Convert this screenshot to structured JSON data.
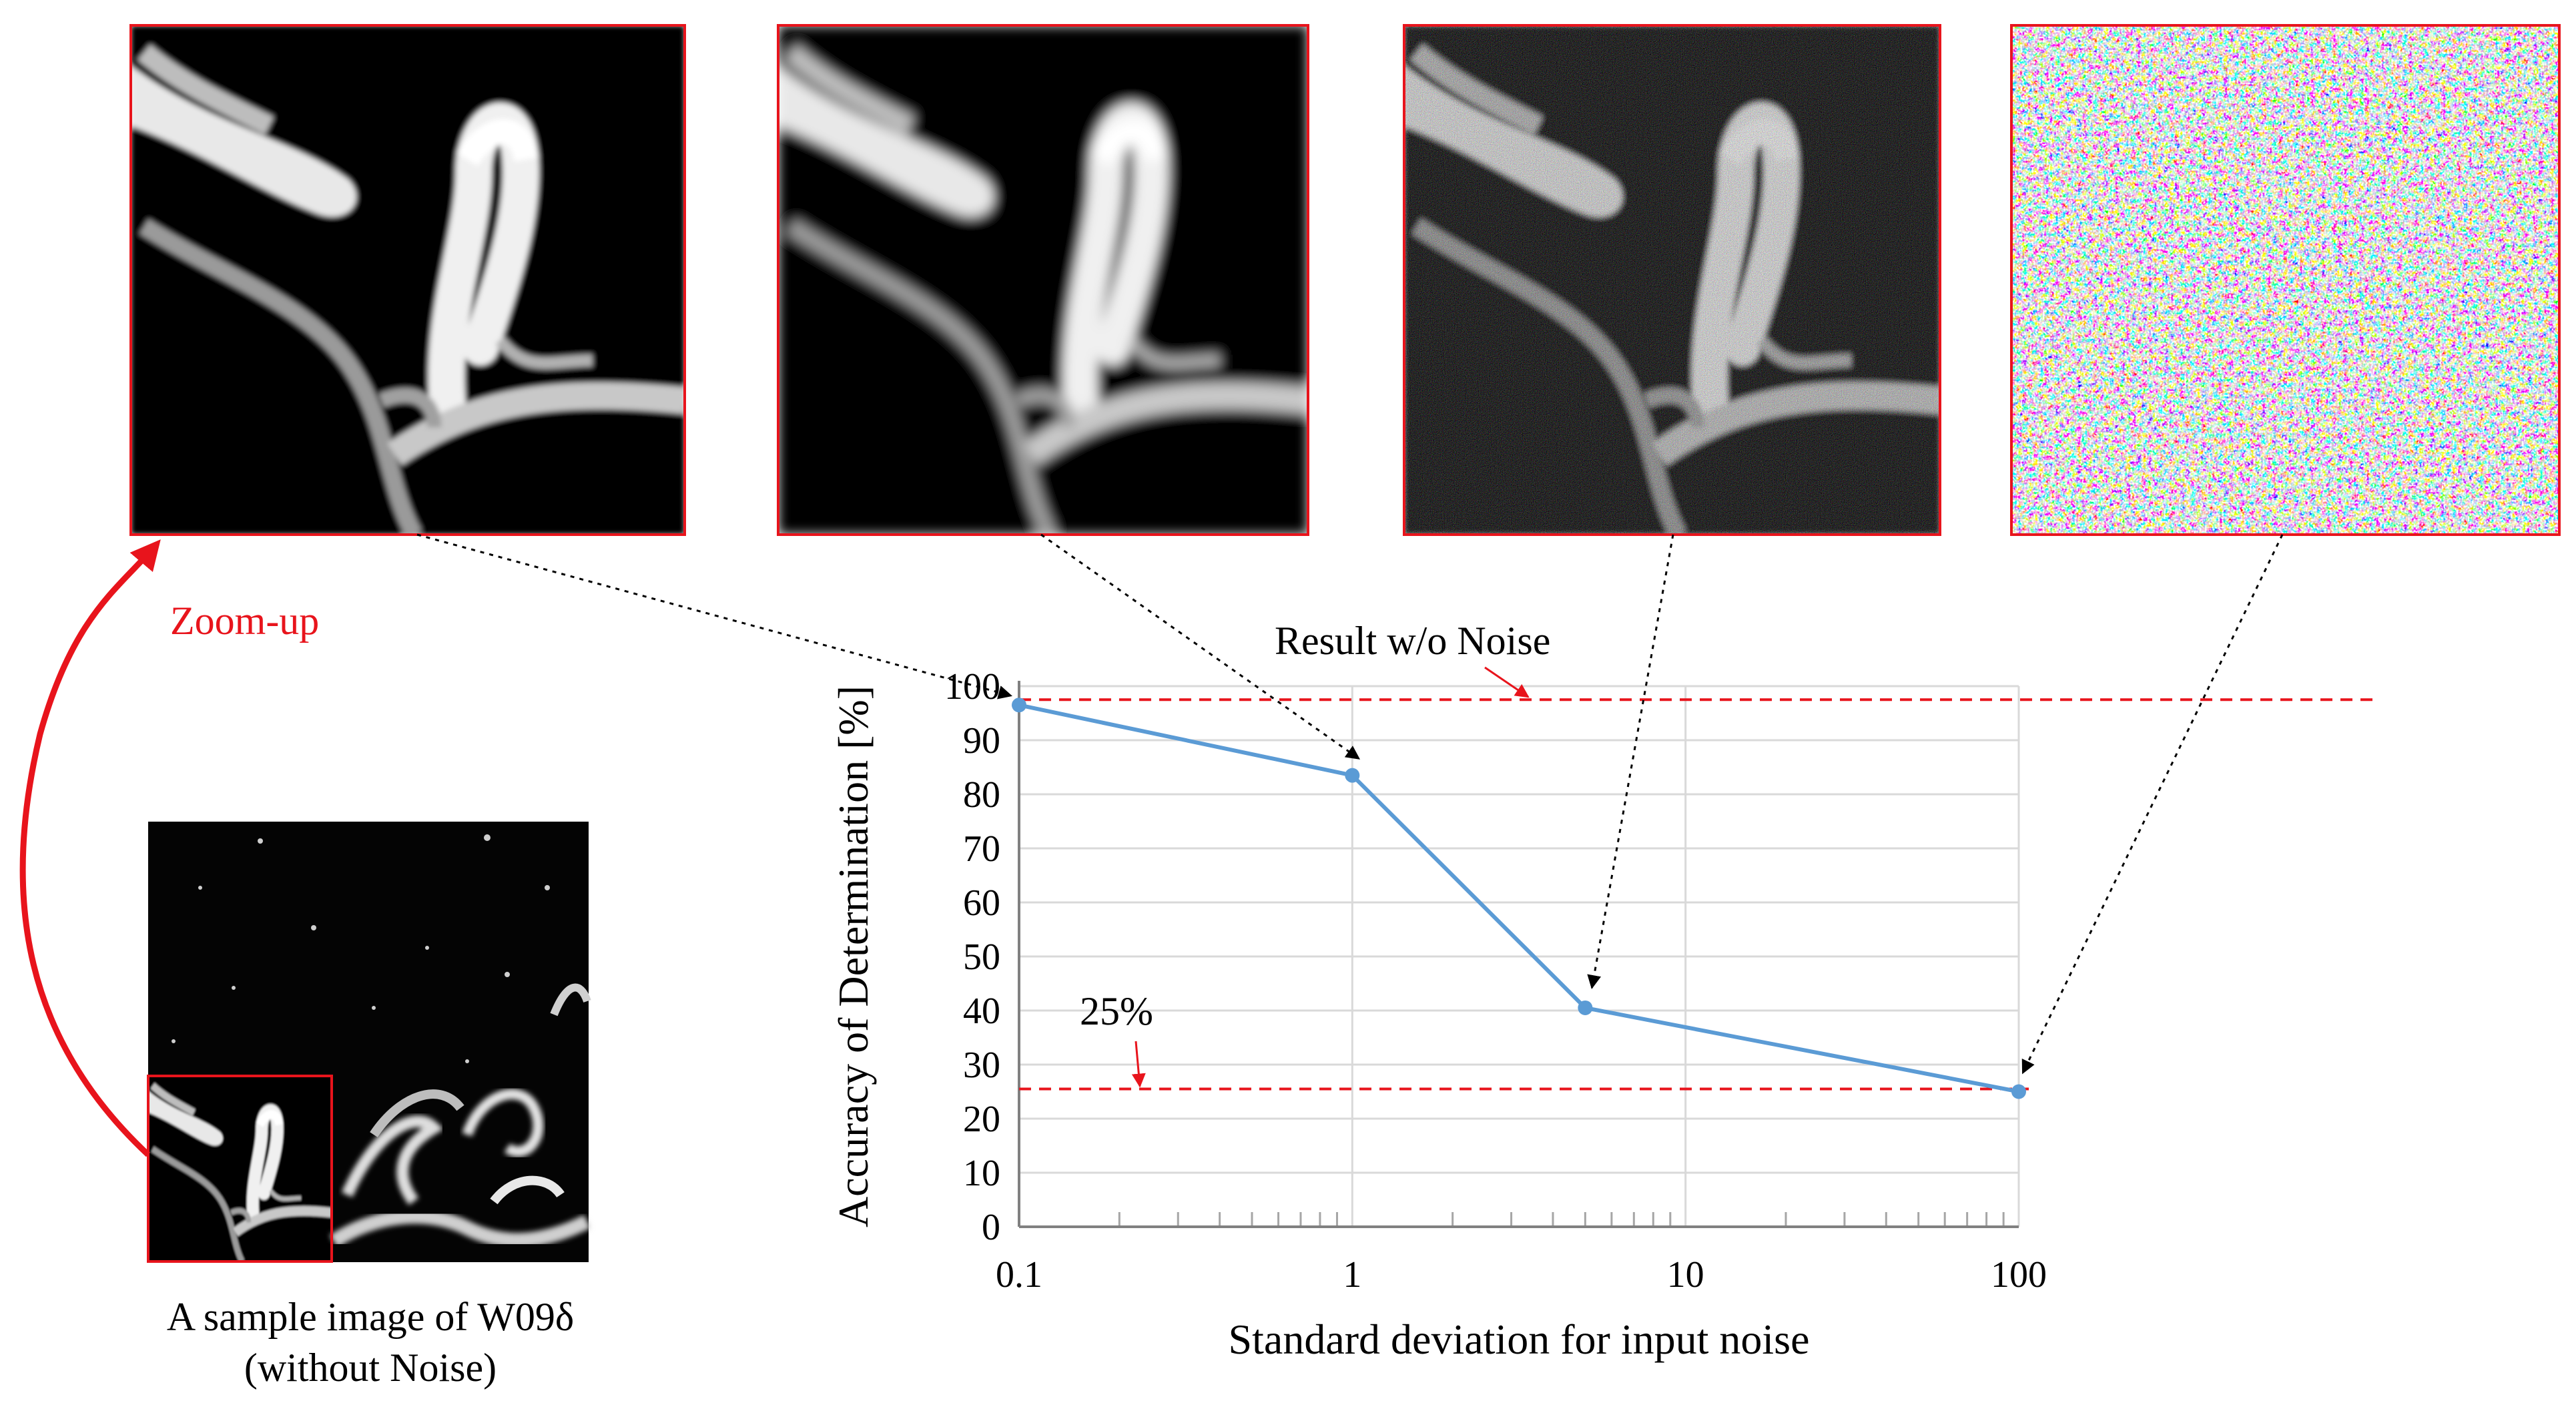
{
  "colors": {
    "accent_red": "#e8141c",
    "series_blue": "#5b9bd5",
    "grid_gray": "#d9d9d9",
    "frame_red": "#e8141c"
  },
  "caption": {
    "line1": "A sample image of W09δ",
    "line2": "(without Noise)"
  },
  "zoom_label": "Zoom-up",
  "reference_lines": {
    "no_noise_label": "Result w/o  Noise",
    "no_noise_value": 97.5,
    "chance_label": "25%",
    "chance_value": 25.5
  },
  "noise_panels": [
    {
      "name": "panel-noise-0.1",
      "noise_sd": 0.1
    },
    {
      "name": "panel-noise-1",
      "noise_sd": 1
    },
    {
      "name": "panel-noise-5",
      "noise_sd": 5
    },
    {
      "name": "panel-noise-100",
      "noise_sd": 100
    }
  ],
  "chart_data": {
    "type": "line",
    "x_scale": "log",
    "x": [
      0.1,
      1,
      5,
      100
    ],
    "series": [
      {
        "name": "Accuracy",
        "values": [
          96.5,
          83.5,
          40.5,
          25
        ]
      }
    ],
    "xlabel": "Standard deviation for input noise",
    "ylabel": "Accuracy of Determination [%]",
    "xlim": [
      0.1,
      100
    ],
    "ylim": [
      0,
      100
    ],
    "x_ticks": [
      0.1,
      1,
      10,
      100
    ],
    "x_tick_labels": [
      "0.1",
      "1",
      "10",
      "100"
    ],
    "y_ticks": [
      0,
      10,
      20,
      30,
      40,
      50,
      60,
      70,
      80,
      90,
      100
    ],
    "y_tick_labels": [
      "0",
      "10",
      "20",
      "30",
      "40",
      "50",
      "60",
      "70",
      "80",
      "90",
      "100"
    ],
    "grid": true
  }
}
